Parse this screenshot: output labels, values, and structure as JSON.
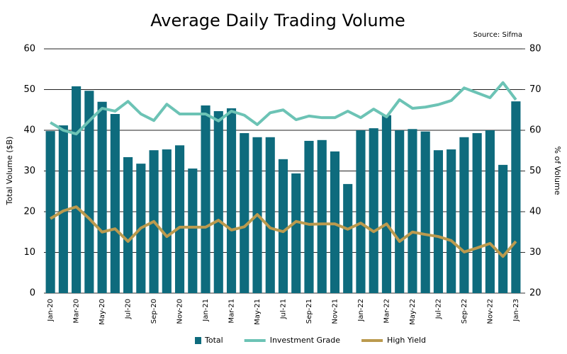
{
  "chart_data": {
    "type": "bar",
    "title": "Average Daily Trading Volume",
    "source": "Source: Sifma",
    "y_label": "Total Volume ($B)",
    "y2_label": "% of Volume",
    "categories": [
      "Jan-20",
      null,
      "Mar-20",
      null,
      "May-20",
      null,
      "Jul-20",
      null,
      "Sep-20",
      null,
      "Nov-20",
      null,
      "Jan-21",
      null,
      "Mar-21",
      null,
      "May-21",
      null,
      "Jul-21",
      null,
      "Sep-21",
      null,
      "Nov-21",
      null,
      "Jan-22",
      null,
      "Mar-22",
      null,
      "May-22",
      null,
      "Jul-22",
      null,
      "Sep-22",
      null,
      "Nov-22",
      null,
      "Jan-23"
    ],
    "series": [
      {
        "name": "Total",
        "type": "bar",
        "color": "#0e6b7d",
        "values": [
          39.8,
          41.2,
          50.8,
          49.7,
          47.0,
          44.0,
          33.4,
          31.8,
          35.1,
          35.3,
          36.3,
          30.6,
          46.1,
          44.7,
          45.4,
          39.3,
          38.3,
          38.3,
          32.9,
          29.4,
          37.4,
          37.6,
          34.8,
          26.8,
          40.0,
          40.5,
          43.7,
          40.0,
          40.3,
          39.7,
          35.1,
          35.3,
          38.3,
          39.3,
          40.0,
          31.5,
          47.1
        ]
      },
      {
        "name": "Investment Grade",
        "type": "line",
        "axis": "y2",
        "color": "#6cc3b5",
        "values": [
          61.9,
          60.0,
          59.1,
          62.3,
          65.4,
          64.7,
          67.1,
          64.0,
          62.4,
          66.4,
          64.0,
          64.0,
          64.0,
          62.3,
          64.7,
          63.7,
          61.4,
          64.3,
          65.0,
          62.6,
          63.5,
          63.1,
          63.1,
          64.7,
          63.1,
          65.2,
          63.3,
          67.5,
          65.4,
          65.7,
          66.3,
          67.3,
          70.4,
          69.2,
          68.0,
          71.7,
          67.5
        ]
      },
      {
        "name": "High Yield",
        "type": "line",
        "axis": "y2",
        "color": "#bb9a4e",
        "values": [
          38.3,
          40.2,
          41.2,
          38.3,
          35.0,
          35.8,
          32.7,
          36.0,
          37.6,
          33.9,
          36.2,
          36.2,
          36.2,
          37.9,
          35.5,
          36.3,
          39.3,
          36.0,
          35.1,
          37.6,
          36.9,
          37.0,
          37.0,
          35.7,
          37.2,
          35.1,
          37.0,
          32.7,
          35.0,
          34.4,
          33.9,
          32.9,
          30.1,
          31.1,
          32.2,
          29.0,
          32.7
        ]
      }
    ],
    "ylim": [
      0,
      60
    ],
    "yticks": [
      0,
      10,
      20,
      30,
      40,
      50,
      60
    ],
    "y2lim": [
      20,
      80
    ],
    "y2ticks": [
      20,
      30,
      40,
      50,
      60,
      70,
      80
    ],
    "grid": true,
    "legend": "bottom"
  }
}
